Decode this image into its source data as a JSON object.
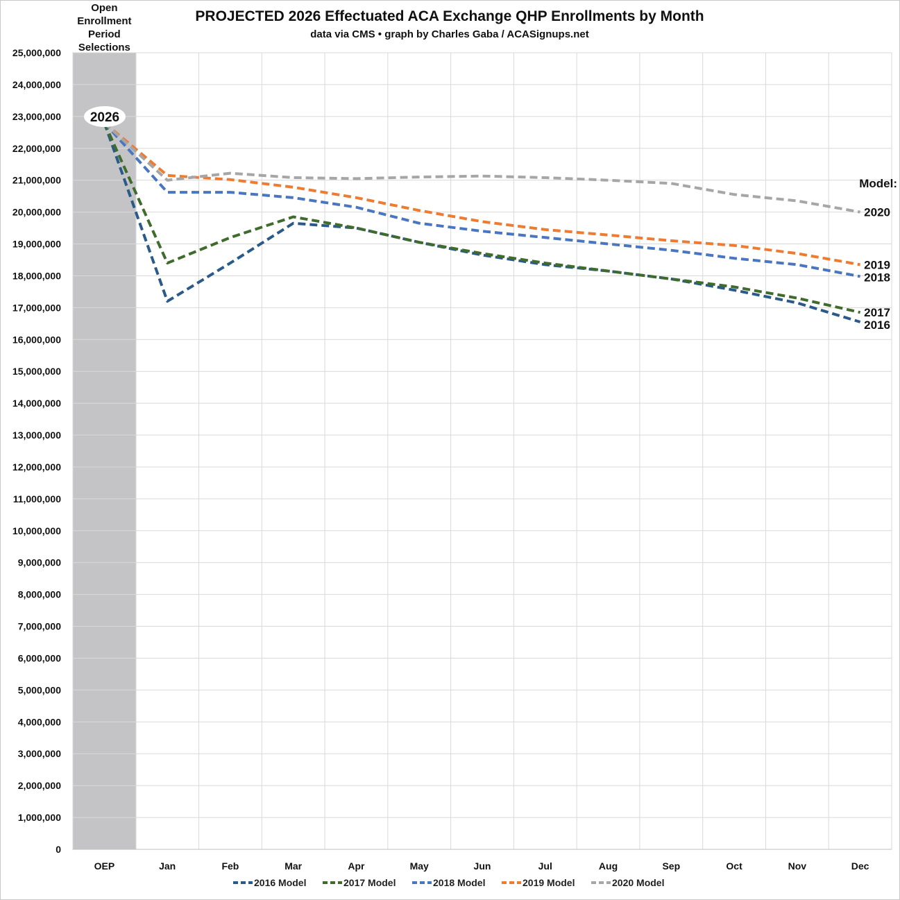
{
  "colors": {
    "grid": "#d9d9d9",
    "shade": "#c4c4c6",
    "s2016": "#2a5a8a",
    "s2017": "#3f6b2c",
    "s2018": "#4a76c0",
    "s2019": "#ee7b30",
    "s2020": "#a6a6a6"
  },
  "chart_data": {
    "type": "line",
    "title": "PROJECTED 2026 Effectuated ACA Exchange QHP Enrollments by Month",
    "subtitle": "data via CMS • graph by Charles Gaba / ACASignups.net",
    "categories": [
      "OEP",
      "Jan",
      "Feb",
      "Mar",
      "Apr",
      "May",
      "Jun",
      "Jul",
      "Aug",
      "Sep",
      "Oct",
      "Nov",
      "Dec"
    ],
    "ylim": [
      0,
      25000000
    ],
    "ytick_step": 1000000,
    "ytick_labels": [
      "0",
      "1,000,000",
      "2,000,000",
      "3,000,000",
      "4,000,000",
      "5,000,000",
      "6,000,000",
      "7,000,000",
      "8,000,000",
      "9,000,000",
      "10,000,000",
      "11,000,000",
      "12,000,000",
      "13,000,000",
      "14,000,000",
      "15,000,000",
      "16,000,000",
      "17,000,000",
      "18,000,000",
      "19,000,000",
      "20,000,000",
      "21,000,000",
      "22,000,000",
      "23,000,000",
      "24,000,000",
      "25,000,000"
    ],
    "grid": true,
    "legend_position": "bottom",
    "shaded_region": {
      "category": "OEP",
      "label_lines": [
        "Open",
        "Enrollment",
        "Period",
        "Selections"
      ]
    },
    "oep_badge": "2026",
    "end_label_header": "Model:",
    "series": [
      {
        "name": "2016 Model",
        "end_label": "2016",
        "color_key": "s2016",
        "values": [
          22800000,
          17200000,
          18400000,
          19650000,
          19500000,
          19050000,
          18650000,
          18350000,
          18150000,
          17900000,
          17550000,
          17150000,
          16550000
        ]
      },
      {
        "name": "2017 Model",
        "end_label": "2017",
        "color_key": "s2017",
        "values": [
          22800000,
          18400000,
          19200000,
          19850000,
          19500000,
          19050000,
          18700000,
          18400000,
          18150000,
          17900000,
          17650000,
          17300000,
          16850000
        ]
      },
      {
        "name": "2018 Model",
        "end_label": "2018",
        "color_key": "s2018",
        "values": [
          22800000,
          20620000,
          20620000,
          20450000,
          20150000,
          19650000,
          19400000,
          19200000,
          19000000,
          18800000,
          18550000,
          18350000,
          17980000
        ]
      },
      {
        "name": "2019 Model",
        "end_label": "2019",
        "color_key": "s2019",
        "values": [
          22800000,
          21150000,
          21020000,
          20780000,
          20450000,
          20050000,
          19700000,
          19450000,
          19280000,
          19100000,
          18950000,
          18700000,
          18350000
        ]
      },
      {
        "name": "2020 Model",
        "end_label": "2020",
        "color_key": "s2020",
        "values": [
          22800000,
          21000000,
          21220000,
          21080000,
          21050000,
          21100000,
          21130000,
          21080000,
          21000000,
          20900000,
          20550000,
          20350000,
          20000000
        ]
      }
    ]
  }
}
